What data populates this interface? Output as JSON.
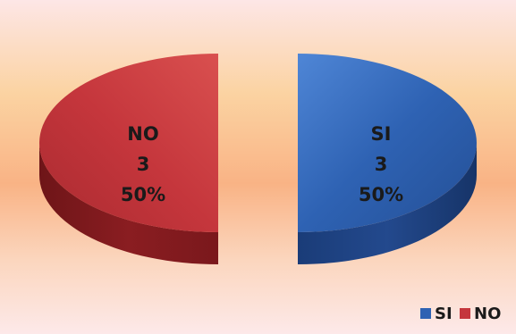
{
  "colors": {
    "background_stops": [
      "#fde6e6",
      "#fbd3a2",
      "#f9b385",
      "#fbd6be",
      "#fde9e9"
    ],
    "SI": "#2e62b3",
    "NO": "#c5363c"
  },
  "chart_data": {
    "type": "pie",
    "style": "3d-exploded",
    "slices": [
      {
        "label": "SI",
        "value": 3,
        "percent": "50%"
      },
      {
        "label": "NO",
        "value": 3,
        "percent": "50%"
      }
    ],
    "legend": {
      "position": "bottom-right",
      "entries": [
        "SI",
        "NO"
      ]
    }
  }
}
